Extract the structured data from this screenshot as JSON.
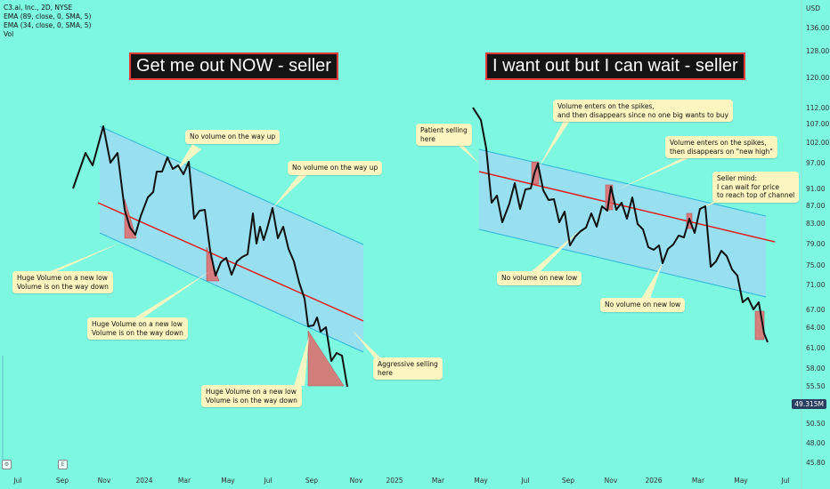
{
  "legend": {
    "symbol": "C3.ai, Inc., 2D, NYSE",
    "ema89": "EMA (89, close, 0, SMA, 5)",
    "ema34": "EMA (34, close, 0, SMA, 5)",
    "vol": "Vol"
  },
  "titles": {
    "left": "Get me out NOW - seller",
    "right": "I want out but I can wait - seller"
  },
  "notes": {
    "no_vol_up_1": "No volume on the way up",
    "no_vol_up_2": "No volume on the way up",
    "huge_vol_1_a": "Huge Volume on a new low",
    "huge_vol_1_b": "Volume is on the way down",
    "huge_vol_2_a": "Huge Volume on a new low",
    "huge_vol_2_b": "Volume is on the way down",
    "huge_vol_3_a": "Huge Volume on a new low",
    "huge_vol_3_b": "Volume is on the way down",
    "aggressive_a": "Aggressive selling",
    "aggressive_b": "here",
    "patient_a": "Patient selling",
    "patient_b": "here",
    "vol_spikes_1_a": "Volume enters on the spikes,",
    "vol_spikes_1_b": "and then disappears since no one big wants to buy",
    "vol_spikes_2_a": "Volume enters on the spikes,",
    "vol_spikes_2_b": "then disappears on \"new high\"",
    "seller_mind_a": "Seller mind:",
    "seller_mind_b": "I can wait for price",
    "seller_mind_c": "to reach top of channel",
    "no_vol_low_1": "No volume on new low",
    "no_vol_low_2": "No volume on new low"
  },
  "price_label": "49.315M",
  "colors": {
    "background": "#7ef7e1",
    "channel_fill": "#9fd8f2",
    "channel_line": "#2ab6d8",
    "midline": "#e02020",
    "volume_marker": "#e06a6a",
    "price_line": "#111111"
  },
  "chart_data": {
    "type": "line",
    "symbol": "C3.ai, Inc.",
    "timeframe": "2D",
    "exchange": "NYSE",
    "y_unit": "USD",
    "x_ticks": [
      "Jul",
      "Sep",
      "Nov",
      "2024",
      "Mar",
      "May",
      "Jul",
      "Sep",
      "Nov",
      "2025",
      "Mar",
      "May",
      "Jul",
      "Sep",
      "Nov",
      "2026",
      "Mar",
      "May",
      "Jul"
    ],
    "y_ticks": [
      136.0,
      128.0,
      120.0,
      112.0,
      107.0,
      102.0,
      97.0,
      91.0,
      87.0,
      83.0,
      79.0,
      75.0,
      71.0,
      67.0,
      64.0,
      61.0,
      58.0,
      55.5,
      53.0,
      50.5,
      48.0,
      45.8
    ],
    "y_axis_title": "USD",
    "annotated_series": [
      {
        "segment": "left",
        "points": [
          [
            82,
            212
          ],
          [
            96,
            172
          ],
          [
            104,
            186
          ],
          [
            116,
            142
          ],
          [
            124,
            183
          ],
          [
            132,
            172
          ],
          [
            140,
            236
          ],
          [
            146,
            256
          ],
          [
            152,
            264
          ],
          [
            158,
            243
          ],
          [
            166,
            222
          ],
          [
            172,
            216
          ],
          [
            176,
            193
          ],
          [
            182,
            193
          ],
          [
            188,
            177
          ],
          [
            194,
            190
          ],
          [
            200,
            186
          ],
          [
            206,
            196
          ],
          [
            212,
            182
          ],
          [
            218,
            246
          ],
          [
            224,
            237
          ],
          [
            230,
            236
          ],
          [
            236,
            282
          ],
          [
            242,
            310
          ],
          [
            248,
            295
          ],
          [
            254,
            290
          ],
          [
            260,
            309
          ],
          [
            266,
            294
          ],
          [
            272,
            289
          ],
          [
            278,
            286
          ],
          [
            284,
            240
          ],
          [
            288,
            274
          ],
          [
            292,
            255
          ],
          [
            296,
            270
          ],
          [
            300,
            257
          ],
          [
            306,
            234
          ],
          [
            312,
            268
          ],
          [
            318,
            255
          ],
          [
            324,
            280
          ],
          [
            330,
            294
          ],
          [
            336,
            318
          ],
          [
            342,
            336
          ],
          [
            346,
            367
          ],
          [
            352,
            366
          ],
          [
            356,
            357
          ],
          [
            360,
            373
          ],
          [
            366,
            368
          ],
          [
            372,
            406
          ],
          [
            378,
            397
          ],
          [
            384,
            400
          ],
          [
            390,
            435
          ]
        ]
      },
      {
        "segment": "right",
        "points": [
          [
            531,
            121
          ],
          [
            540,
            135
          ],
          [
            546,
            167
          ],
          [
            552,
            228
          ],
          [
            558,
            220
          ],
          [
            564,
            250
          ],
          [
            572,
            229
          ],
          [
            578,
            206
          ],
          [
            584,
            235
          ],
          [
            590,
            213
          ],
          [
            596,
            212
          ],
          [
            600,
            195
          ],
          [
            604,
            184
          ],
          [
            610,
            214
          ],
          [
            616,
            225
          ],
          [
            622,
            224
          ],
          [
            628,
            250
          ],
          [
            634,
            238
          ],
          [
            640,
            276
          ],
          [
            646,
            266
          ],
          [
            652,
            260
          ],
          [
            658,
            256
          ],
          [
            664,
            240
          ],
          [
            670,
            255
          ],
          [
            676,
            232
          ],
          [
            682,
            237
          ],
          [
            686,
            210
          ],
          [
            692,
            236
          ],
          [
            698,
            228
          ],
          [
            704,
            246
          ],
          [
            710,
            222
          ],
          [
            716,
            252
          ],
          [
            722,
            258
          ],
          [
            728,
            278
          ],
          [
            734,
            281
          ],
          [
            740,
            276
          ],
          [
            744,
            296
          ],
          [
            750,
            280
          ],
          [
            756,
            275
          ],
          [
            762,
            265
          ],
          [
            768,
            267
          ],
          [
            774,
            246
          ],
          [
            780,
            262
          ],
          [
            786,
            235
          ],
          [
            792,
            232
          ],
          [
            798,
            300
          ],
          [
            804,
            294
          ],
          [
            810,
            282
          ],
          [
            816,
            288
          ],
          [
            822,
            303
          ],
          [
            828,
            310
          ],
          [
            834,
            340
          ],
          [
            840,
            335
          ],
          [
            846,
            348
          ],
          [
            852,
            340
          ],
          [
            858,
            375
          ],
          [
            862,
            385
          ]
        ]
      }
    ]
  }
}
